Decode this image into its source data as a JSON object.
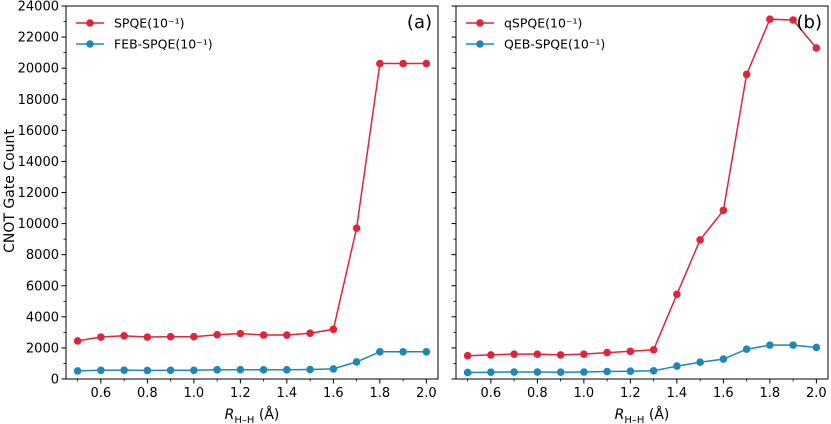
{
  "figure": {
    "ylabel": "CNOT Gate Count",
    "xlabel_symbol": "R",
    "xlabel_subscript": "H–H",
    "xlabel_unit": " (Å)"
  },
  "colors": {
    "red": "#e0243a",
    "blue": "#1c88b8"
  },
  "chart_data": [
    {
      "type": "line",
      "panel_label": "(a)",
      "x": [
        0.5,
        0.6,
        0.7,
        0.8,
        0.9,
        1.0,
        1.1,
        1.2,
        1.3,
        1.4,
        1.5,
        1.6,
        1.7,
        1.8,
        1.9,
        2.0
      ],
      "series": [
        {
          "name": "SPQE(10⁻¹)",
          "color": "#e0243a",
          "values": [
            2450,
            2700,
            2780,
            2700,
            2720,
            2720,
            2850,
            2920,
            2830,
            2830,
            2950,
            3200,
            9700,
            20300,
            20300,
            20300
          ]
        },
        {
          "name": "FEB-SPQE(10⁻¹)",
          "color": "#1c88b8",
          "values": [
            520,
            560,
            570,
            550,
            560,
            560,
            590,
            600,
            590,
            590,
            610,
            650,
            1100,
            1750,
            1750,
            1750
          ]
        }
      ],
      "xlabel": "R H–H (Å)",
      "ylabel": "CNOT Gate Count",
      "xlim": [
        0.45,
        2.05
      ],
      "ylim": [
        0,
        24000
      ],
      "xticks": [
        0.6,
        0.8,
        1.0,
        1.2,
        1.4,
        1.6,
        1.8,
        2.0
      ],
      "xtick_labels": [
        "0.6",
        "0.8",
        "1.0",
        "1.2",
        "1.4",
        "1.6",
        "1.8",
        "2.0"
      ],
      "yticks": [
        0,
        2000,
        4000,
        6000,
        8000,
        10000,
        12000,
        14000,
        16000,
        18000,
        20000,
        22000,
        24000
      ],
      "ytick_labels": [
        "0",
        "2000",
        "4000",
        "6000",
        "8000",
        "10000",
        "12000",
        "14000",
        "16000",
        "18000",
        "20000",
        "22000",
        "24000"
      ],
      "legend": "top-left"
    },
    {
      "type": "line",
      "panel_label": "(b)",
      "x": [
        0.5,
        0.6,
        0.7,
        0.8,
        0.9,
        1.0,
        1.1,
        1.2,
        1.3,
        1.4,
        1.5,
        1.6,
        1.7,
        1.8,
        1.9,
        2.0
      ],
      "series": [
        {
          "name": "qSPQE(10⁻¹)",
          "color": "#e0243a",
          "values": [
            1500,
            1550,
            1600,
            1600,
            1550,
            1600,
            1700,
            1780,
            1880,
            5450,
            8950,
            10850,
            19600,
            23150,
            23100,
            21300
          ]
        },
        {
          "name": "QEB-SPQE(10⁻¹)",
          "color": "#1c88b8",
          "values": [
            420,
            440,
            450,
            450,
            440,
            450,
            480,
            500,
            530,
            830,
            1080,
            1280,
            1920,
            2180,
            2180,
            2030
          ]
        }
      ],
      "xlabel": "R H–H (Å)",
      "ylabel": "",
      "xlim": [
        0.45,
        2.05
      ],
      "ylim": [
        0,
        24000
      ],
      "xticks": [
        0.6,
        0.8,
        1.0,
        1.2,
        1.4,
        1.6,
        1.8,
        2.0
      ],
      "xtick_labels": [
        "0.6",
        "0.8",
        "1.0",
        "1.2",
        "1.4",
        "1.6",
        "1.8",
        "2.0"
      ],
      "yticks": [
        0,
        2000,
        4000,
        6000,
        8000,
        10000,
        12000,
        14000,
        16000,
        18000,
        20000,
        22000,
        24000
      ],
      "ytick_labels": [],
      "legend": "top-left"
    }
  ]
}
